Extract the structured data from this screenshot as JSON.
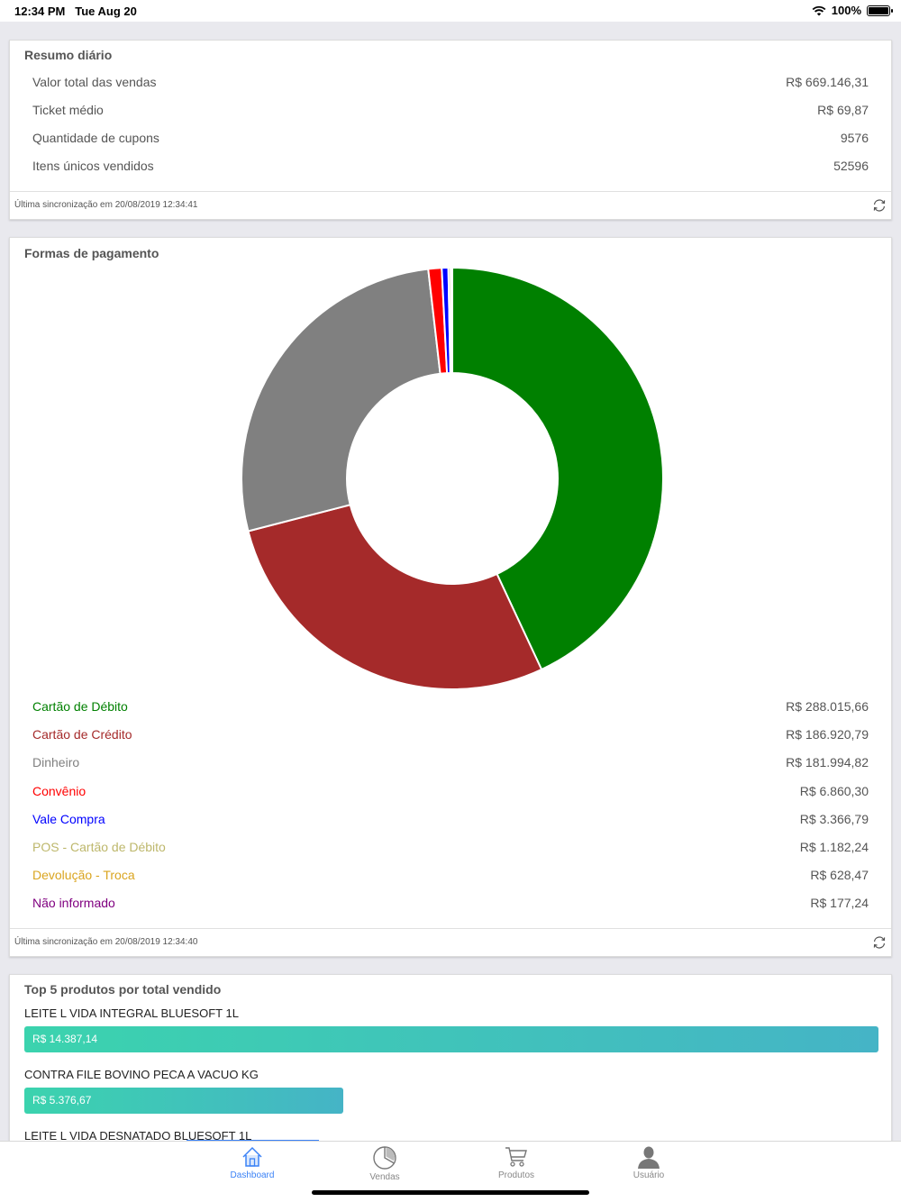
{
  "status_bar": {
    "time": "12:34 PM",
    "date": "Tue Aug 20",
    "battery": "100%"
  },
  "summary": {
    "title": "Resumo diário",
    "rows": [
      {
        "label": "Valor total das vendas",
        "value": "R$ 669.146,31"
      },
      {
        "label": "Ticket médio",
        "value": "R$ 69,87"
      },
      {
        "label": "Quantidade de cupons",
        "value": "9576"
      },
      {
        "label": "Itens únicos vendidos",
        "value": "52596"
      }
    ],
    "sync": "Última sincronização em 20/08/2019 12:34:41"
  },
  "payments": {
    "title": "Formas de pagamento",
    "items": [
      {
        "label": "Cartão de Débito",
        "value": "R$ 288.015,66",
        "color": "#008000"
      },
      {
        "label": "Cartão de Crédito",
        "value": "R$ 186.920,79",
        "color": "#a52a2a"
      },
      {
        "label": "Dinheiro",
        "value": "R$ 181.994,82",
        "color": "#808080"
      },
      {
        "label": "Convênio",
        "value": "R$ 6.860,30",
        "color": "#ff0000"
      },
      {
        "label": "Vale Compra",
        "value": "R$ 3.366,79",
        "color": "#0000ff"
      },
      {
        "label": "POS - Cartão de Débito",
        "value": "R$ 1.182,24",
        "color": "#bdb76b"
      },
      {
        "label": "Devolução - Troca",
        "value": "R$ 628,47",
        "color": "#daa520"
      },
      {
        "label": "Não informado",
        "value": "R$ 177,24",
        "color": "#800080"
      }
    ],
    "sync": "Última sincronização em 20/08/2019 12:34:40"
  },
  "chart_data": {
    "type": "pie",
    "title": "",
    "categories": [
      "Cartão de Débito",
      "Cartão de Crédito",
      "Dinheiro",
      "Convênio",
      "Vale Compra",
      "POS - Cartão de Débito",
      "Devolução - Troca",
      "Não informado"
    ],
    "values": [
      288015.66,
      186920.79,
      181994.82,
      6860.3,
      3366.79,
      1182.24,
      628.47,
      177.24
    ],
    "colors": [
      "#008000",
      "#a52a2a",
      "#808080",
      "#ff0000",
      "#0000ff",
      "#bdb76b",
      "#daa520",
      "#800080"
    ],
    "donut": true
  },
  "top_products": {
    "title": "Top 5 produtos por total vendido",
    "items": [
      {
        "name": "LEITE L VIDA INTEGRAL BLUESOFT 1L",
        "value": "R$ 14.387,14",
        "amount": 14387.14
      },
      {
        "name": "CONTRA FILE BOVINO PECA A VACUO KG",
        "value": "R$ 5.376,67",
        "amount": 5376.67
      },
      {
        "name": "LEITE L VIDA DESNATADO BLUESOFT 1L",
        "value": "",
        "amount": null
      }
    ]
  },
  "tabs": [
    {
      "label": "Dashboard",
      "icon": "home-icon",
      "active": true
    },
    {
      "label": "Vendas",
      "icon": "pie-chart-icon",
      "active": false
    },
    {
      "label": "Produtos",
      "icon": "cart-icon",
      "active": false
    },
    {
      "label": "Usuário",
      "icon": "user-icon",
      "active": false
    }
  ]
}
